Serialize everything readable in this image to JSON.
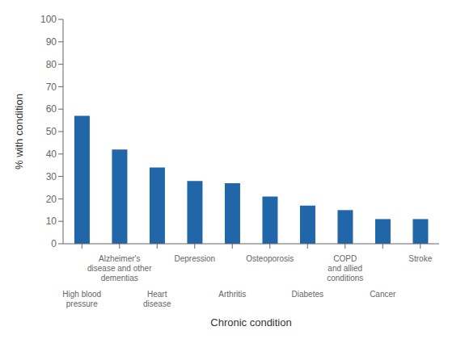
{
  "chart_data": {
    "type": "bar",
    "categories": [
      "High blood\npressure",
      "Alzheimer's\ndisease and other\ndementias",
      "Heart\ndisease",
      "Depression",
      "Arthritis",
      "Osteoporosis",
      "Diabetes",
      "COPD\nand allied\nconditions",
      "Cancer",
      "Stroke"
    ],
    "values": [
      57,
      42,
      34,
      28,
      27,
      21,
      17,
      15,
      11,
      11
    ],
    "color": "#2166a8",
    "xlabel": "Chronic condition",
    "ylabel": "% with condition",
    "ylim": [
      0,
      100
    ],
    "yticks": [
      0,
      10,
      20,
      30,
      40,
      50,
      60,
      70,
      80,
      90,
      100
    ],
    "grid": false
  }
}
